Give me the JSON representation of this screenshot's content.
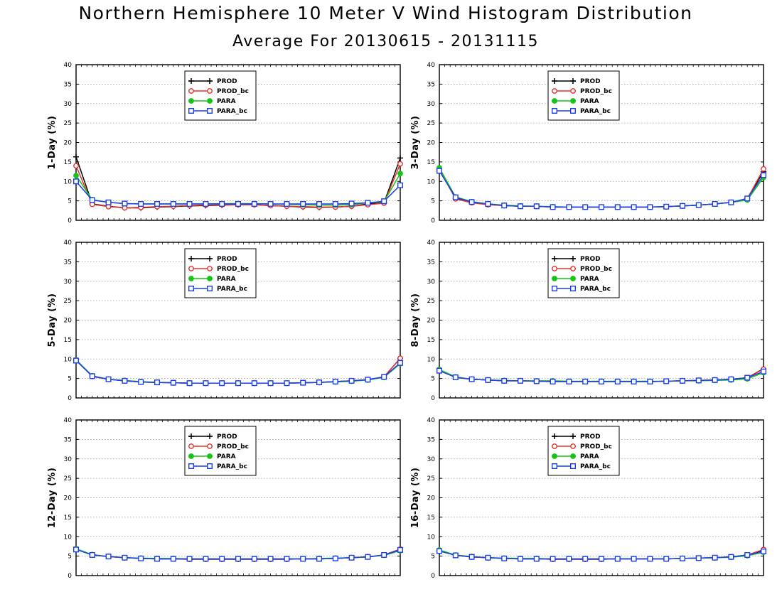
{
  "title": "Northern Hemisphere 10 Meter V Wind Histogram Distribution",
  "subtitle": "Average For 20130615 - 20131115",
  "colors": {
    "PROD": "#000000",
    "PROD_bc": "#e8312c",
    "PARA": "#16c416",
    "PARA_bc": "#1a3ef0",
    "grid": "#9a9a9a"
  },
  "chart_data": [
    {
      "type": "line",
      "ylabel": "1-Day (%)",
      "ylim": [
        0,
        40
      ],
      "yticks": [
        0,
        5,
        10,
        15,
        20,
        25,
        30,
        35,
        40
      ],
      "x": [
        1,
        2,
        3,
        4,
        5,
        6,
        7,
        8,
        9,
        10,
        11,
        12,
        13,
        14,
        15,
        16,
        17,
        18,
        19,
        20,
        21
      ],
      "grid": true,
      "legend_position": "top-left",
      "series": [
        {
          "name": "PROD",
          "marker": "plus",
          "values": [
            16.3,
            4.2,
            3.6,
            3.2,
            3.2,
            3.4,
            3.5,
            3.7,
            3.8,
            3.9,
            4.0,
            4.0,
            3.8,
            3.6,
            3.4,
            3.3,
            3.4,
            3.6,
            4.2,
            4.5,
            16.0
          ]
        },
        {
          "name": "PROD_bc",
          "marker": "circle",
          "values": [
            14.0,
            4.1,
            3.5,
            3.2,
            3.3,
            3.5,
            3.6,
            3.8,
            3.9,
            4.0,
            4.0,
            4.0,
            3.8,
            3.6,
            3.5,
            3.4,
            3.4,
            3.6,
            4.0,
            4.4,
            14.5
          ]
        },
        {
          "name": "PARA",
          "marker": "dot",
          "values": [
            11.5,
            5.3,
            4.6,
            4.3,
            4.2,
            4.2,
            4.2,
            4.2,
            4.2,
            4.3,
            4.3,
            4.3,
            4.2,
            4.1,
            4.0,
            3.9,
            3.9,
            4.0,
            4.5,
            4.8,
            12.0
          ]
        },
        {
          "name": "PARA_bc",
          "marker": "square",
          "values": [
            10.0,
            5.2,
            4.6,
            4.3,
            4.2,
            4.2,
            4.2,
            4.2,
            4.2,
            4.2,
            4.2,
            4.2,
            4.2,
            4.2,
            4.2,
            4.2,
            4.2,
            4.3,
            4.5,
            4.9,
            9.0
          ]
        }
      ]
    },
    {
      "type": "line",
      "ylabel": "3-Day (%)",
      "ylim": [
        0,
        40
      ],
      "yticks": [
        0,
        5,
        10,
        15,
        20,
        25,
        30,
        35,
        40
      ],
      "x": [
        1,
        2,
        3,
        4,
        5,
        6,
        7,
        8,
        9,
        10,
        11,
        12,
        13,
        14,
        15,
        16,
        17,
        18,
        19,
        20,
        21
      ],
      "grid": true,
      "legend_position": "top-left",
      "series": [
        {
          "name": "PROD",
          "marker": "plus",
          "values": [
            13.0,
            5.6,
            4.6,
            4.1,
            3.8,
            3.6,
            3.6,
            3.4,
            3.4,
            3.4,
            3.4,
            3.4,
            3.4,
            3.4,
            3.5,
            3.7,
            3.9,
            4.2,
            4.6,
            5.6,
            12.5
          ]
        },
        {
          "name": "PROD_bc",
          "marker": "circle",
          "values": [
            13.2,
            5.5,
            4.5,
            4.0,
            3.8,
            3.6,
            3.6,
            3.4,
            3.4,
            3.4,
            3.4,
            3.4,
            3.4,
            3.4,
            3.5,
            3.7,
            3.9,
            4.2,
            4.6,
            5.5,
            13.2
          ]
        },
        {
          "name": "PARA",
          "marker": "dot",
          "values": [
            13.5,
            6.0,
            4.8,
            4.2,
            3.9,
            3.7,
            3.6,
            3.5,
            3.4,
            3.4,
            3.4,
            3.4,
            3.4,
            3.4,
            3.5,
            3.7,
            3.9,
            4.2,
            4.6,
            5.2,
            11.0
          ]
        },
        {
          "name": "PARA_bc",
          "marker": "square",
          "values": [
            12.7,
            5.9,
            4.7,
            4.2,
            3.8,
            3.6,
            3.6,
            3.4,
            3.4,
            3.4,
            3.4,
            3.4,
            3.4,
            3.4,
            3.5,
            3.7,
            3.9,
            4.2,
            4.6,
            5.6,
            11.6
          ]
        }
      ]
    },
    {
      "type": "line",
      "ylabel": "5-Day (%)",
      "ylim": [
        0,
        40
      ],
      "yticks": [
        0,
        5,
        10,
        15,
        20,
        25,
        30,
        35,
        40
      ],
      "x": [
        1,
        2,
        3,
        4,
        5,
        6,
        7,
        8,
        9,
        10,
        11,
        12,
        13,
        14,
        15,
        16,
        17,
        18,
        19,
        20,
        21
      ],
      "grid": true,
      "legend_position": "top-left",
      "series": [
        {
          "name": "PROD",
          "marker": "plus",
          "values": [
            9.8,
            5.6,
            4.8,
            4.4,
            4.1,
            4.0,
            3.9,
            3.8,
            3.8,
            3.8,
            3.8,
            3.8,
            3.8,
            3.8,
            3.9,
            4.0,
            4.2,
            4.4,
            4.7,
            5.4,
            10.2
          ]
        },
        {
          "name": "PROD_bc",
          "marker": "circle",
          "values": [
            9.8,
            5.5,
            4.8,
            4.4,
            4.1,
            4.0,
            3.9,
            3.8,
            3.8,
            3.8,
            3.8,
            3.8,
            3.8,
            3.8,
            3.9,
            4.0,
            4.2,
            4.4,
            4.7,
            5.4,
            10.2
          ]
        },
        {
          "name": "PARA",
          "marker": "dot",
          "values": [
            9.8,
            5.7,
            4.8,
            4.5,
            4.2,
            4.0,
            3.9,
            3.8,
            3.8,
            3.8,
            3.8,
            3.8,
            3.8,
            3.8,
            3.9,
            4.0,
            4.1,
            4.3,
            4.6,
            5.3,
            8.8
          ]
        },
        {
          "name": "PARA_bc",
          "marker": "square",
          "values": [
            9.6,
            5.6,
            4.8,
            4.4,
            4.1,
            4.0,
            3.9,
            3.8,
            3.8,
            3.8,
            3.8,
            3.8,
            3.8,
            3.8,
            3.9,
            4.0,
            4.2,
            4.4,
            4.7,
            5.4,
            9.0
          ]
        }
      ]
    },
    {
      "type": "line",
      "ylabel": "8-Day (%)",
      "ylim": [
        0,
        40
      ],
      "yticks": [
        0,
        5,
        10,
        15,
        20,
        25,
        30,
        35,
        40
      ],
      "x": [
        1,
        2,
        3,
        4,
        5,
        6,
        7,
        8,
        9,
        10,
        11,
        12,
        13,
        14,
        15,
        16,
        17,
        18,
        19,
        20,
        21
      ],
      "grid": true,
      "legend_position": "top-left",
      "series": [
        {
          "name": "PROD",
          "marker": "plus",
          "values": [
            7.2,
            5.3,
            4.8,
            4.6,
            4.4,
            4.4,
            4.3,
            4.2,
            4.2,
            4.2,
            4.2,
            4.2,
            4.2,
            4.2,
            4.3,
            4.4,
            4.5,
            4.6,
            4.8,
            5.2,
            7.5
          ]
        },
        {
          "name": "PROD_bc",
          "marker": "circle",
          "values": [
            7.3,
            5.3,
            4.8,
            4.6,
            4.4,
            4.4,
            4.3,
            4.2,
            4.2,
            4.2,
            4.2,
            4.2,
            4.2,
            4.2,
            4.3,
            4.4,
            4.5,
            4.6,
            4.8,
            5.2,
            7.4
          ]
        },
        {
          "name": "PARA",
          "marker": "dot",
          "values": [
            7.3,
            5.4,
            4.8,
            4.6,
            4.5,
            4.4,
            4.4,
            4.4,
            4.3,
            4.3,
            4.3,
            4.3,
            4.3,
            4.3,
            4.3,
            4.4,
            4.4,
            4.5,
            4.6,
            4.9,
            6.5
          ]
        },
        {
          "name": "PARA_bc",
          "marker": "square",
          "values": [
            7.0,
            5.3,
            4.8,
            4.6,
            4.4,
            4.4,
            4.3,
            4.2,
            4.2,
            4.2,
            4.2,
            4.2,
            4.2,
            4.2,
            4.3,
            4.4,
            4.5,
            4.6,
            4.8,
            5.2,
            6.8
          ]
        }
      ]
    },
    {
      "type": "line",
      "ylabel": "12-Day (%)",
      "ylim": [
        0,
        40
      ],
      "yticks": [
        0,
        5,
        10,
        15,
        20,
        25,
        30,
        35,
        40
      ],
      "x": [
        1,
        2,
        3,
        4,
        5,
        6,
        7,
        8,
        9,
        10,
        11,
        12,
        13,
        14,
        15,
        16,
        17,
        18,
        19,
        20,
        21
      ],
      "grid": true,
      "legend_position": "top-left",
      "series": [
        {
          "name": "PROD",
          "marker": "plus",
          "values": [
            6.8,
            5.3,
            4.9,
            4.6,
            4.4,
            4.3,
            4.3,
            4.2,
            4.2,
            4.2,
            4.2,
            4.2,
            4.2,
            4.2,
            4.3,
            4.3,
            4.4,
            4.6,
            4.8,
            5.3,
            6.8
          ]
        },
        {
          "name": "PROD_bc",
          "marker": "circle",
          "values": [
            6.8,
            5.3,
            4.9,
            4.6,
            4.4,
            4.3,
            4.3,
            4.2,
            4.2,
            4.2,
            4.2,
            4.2,
            4.2,
            4.2,
            4.3,
            4.3,
            4.4,
            4.6,
            4.8,
            5.3,
            6.8
          ]
        },
        {
          "name": "PARA",
          "marker": "dot",
          "values": [
            6.9,
            5.4,
            4.9,
            4.6,
            4.5,
            4.4,
            4.4,
            4.3,
            4.3,
            4.3,
            4.3,
            4.3,
            4.3,
            4.3,
            4.3,
            4.4,
            4.5,
            4.6,
            4.8,
            5.2,
            6.4
          ]
        },
        {
          "name": "PARA_bc",
          "marker": "square",
          "values": [
            6.7,
            5.3,
            4.9,
            4.6,
            4.4,
            4.3,
            4.3,
            4.3,
            4.3,
            4.3,
            4.3,
            4.3,
            4.3,
            4.3,
            4.3,
            4.3,
            4.4,
            4.6,
            4.8,
            5.3,
            6.6
          ]
        }
      ]
    },
    {
      "type": "line",
      "ylabel": "16-Day (%)",
      "ylim": [
        0,
        40
      ],
      "yticks": [
        0,
        5,
        10,
        15,
        20,
        25,
        30,
        35,
        40
      ],
      "x": [
        1,
        2,
        3,
        4,
        5,
        6,
        7,
        8,
        9,
        10,
        11,
        12,
        13,
        14,
        15,
        16,
        17,
        18,
        19,
        20,
        21
      ],
      "grid": true,
      "legend_position": "top-left",
      "series": [
        {
          "name": "PROD",
          "marker": "plus",
          "values": [
            6.4,
            5.2,
            4.8,
            4.6,
            4.4,
            4.3,
            4.3,
            4.2,
            4.2,
            4.2,
            4.2,
            4.3,
            4.3,
            4.3,
            4.3,
            4.4,
            4.5,
            4.6,
            4.8,
            5.3,
            6.5
          ]
        },
        {
          "name": "PROD_bc",
          "marker": "circle",
          "values": [
            6.5,
            5.2,
            4.8,
            4.6,
            4.4,
            4.3,
            4.3,
            4.2,
            4.2,
            4.2,
            4.2,
            4.3,
            4.3,
            4.3,
            4.3,
            4.4,
            4.5,
            4.6,
            4.8,
            5.3,
            6.7
          ]
        },
        {
          "name": "PARA",
          "marker": "dot",
          "values": [
            6.6,
            5.3,
            4.9,
            4.6,
            4.5,
            4.4,
            4.4,
            4.3,
            4.3,
            4.3,
            4.3,
            4.3,
            4.3,
            4.3,
            4.3,
            4.4,
            4.5,
            4.6,
            4.7,
            5.1,
            6.0
          ]
        },
        {
          "name": "PARA_bc",
          "marker": "square",
          "values": [
            6.3,
            5.2,
            4.8,
            4.6,
            4.4,
            4.3,
            4.3,
            4.3,
            4.3,
            4.3,
            4.3,
            4.3,
            4.3,
            4.3,
            4.3,
            4.4,
            4.5,
            4.6,
            4.8,
            5.3,
            6.2
          ]
        }
      ]
    }
  ]
}
